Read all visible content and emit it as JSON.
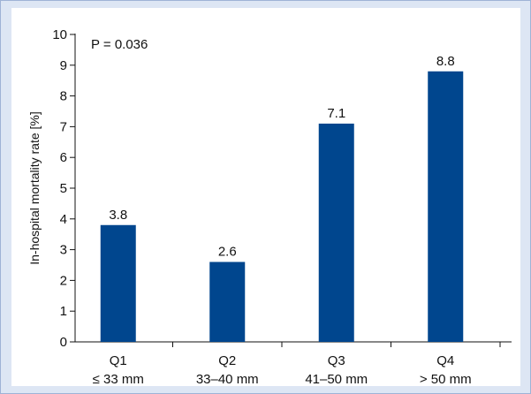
{
  "chart_data": {
    "type": "bar",
    "categories": [
      "Q1",
      "Q2",
      "Q3",
      "Q4"
    ],
    "category_sublabels": [
      "≤ 33 mm",
      "33–40 mm",
      "41–50 mm",
      "> 50 mm"
    ],
    "values": [
      3.8,
      2.6,
      7.1,
      8.8
    ],
    "data_labels": [
      "3.8",
      "2.6",
      "7.1",
      "8.8"
    ],
    "ylabel": "In-hospital mortality rate [%]",
    "xlabel": "",
    "ylim": [
      0,
      10
    ],
    "yticks": [
      0,
      1,
      2,
      3,
      4,
      5,
      6,
      7,
      8,
      9,
      10
    ],
    "annotation": "P = 0.036",
    "bar_color": "#00468e",
    "grid": false
  }
}
